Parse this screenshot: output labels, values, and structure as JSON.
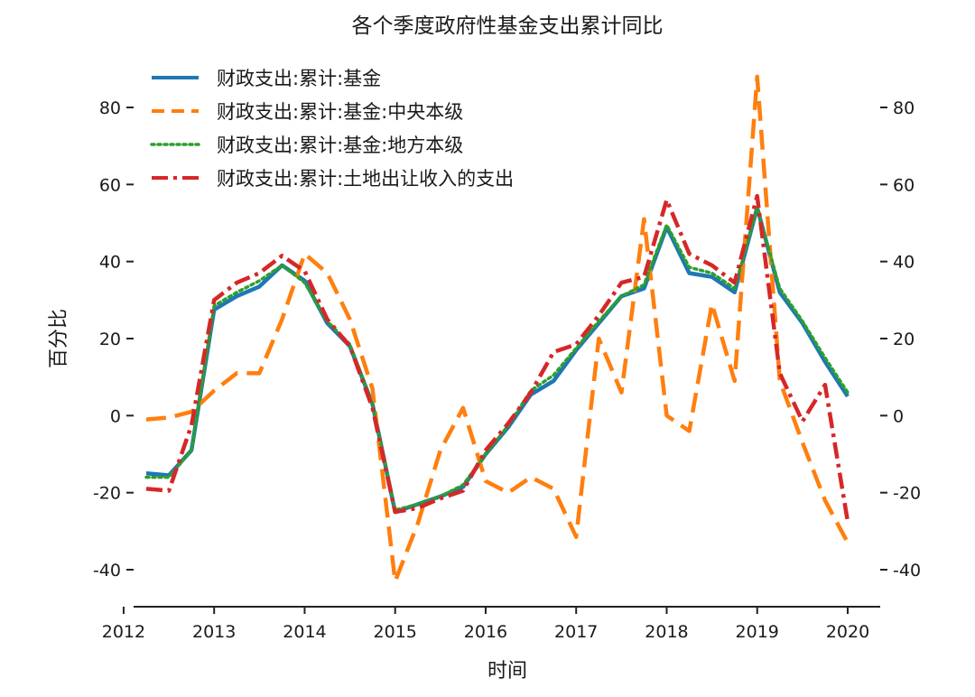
{
  "chart_data": {
    "type": "line",
    "title": "各个季度政府性基金支出累计同比",
    "xlabel": "时间",
    "ylabel": "百分比",
    "xlim": [
      2012.0,
      2020.25
    ],
    "ylim": [
      -50,
      94
    ],
    "x_ticks": [
      2012,
      2013,
      2014,
      2015,
      2016,
      2017,
      2018,
      2019,
      2020
    ],
    "x_tick_labels": [
      "2012",
      "2013",
      "2014",
      "2015",
      "2016",
      "2017",
      "2018",
      "2019",
      "2020"
    ],
    "y_ticks": [
      -40,
      -20,
      0,
      20,
      40,
      60,
      80
    ],
    "y_tick_labels": [
      "-40",
      "-20",
      "0",
      "20",
      "40",
      "60",
      "80"
    ],
    "right_axis": true,
    "legend_position": "top-left",
    "x": [
      2012.25,
      2012.5,
      2012.75,
      2013.0,
      2013.25,
      2013.5,
      2013.75,
      2014.0,
      2014.25,
      2014.5,
      2014.75,
      2015.0,
      2015.25,
      2015.5,
      2015.75,
      2016.0,
      2016.25,
      2016.5,
      2016.75,
      2017.0,
      2017.25,
      2017.5,
      2017.75,
      2018.0,
      2018.25,
      2018.5,
      2018.75,
      2019.0,
      2019.25,
      2019.5,
      2019.75,
      2020.0
    ],
    "series": [
      {
        "name": "财政支出:累计:基金",
        "color": "#1f77b4",
        "style": "solid",
        "values": [
          -15,
          -15.5,
          -9,
          27.5,
          31,
          33.5,
          39,
          35,
          24,
          18,
          3,
          -25,
          -23,
          -21,
          -18.5,
          -10,
          -3,
          5.5,
          9,
          17,
          24,
          31,
          33,
          49,
          37,
          36,
          32,
          54,
          32,
          24,
          14,
          5
        ]
      },
      {
        "name": "财政支出:累计:基金:中央本级",
        "color": "#ff7f0e",
        "style": "dashed",
        "values": [
          -1,
          -0.5,
          1,
          6.5,
          11,
          11,
          25,
          42,
          37,
          25,
          7,
          -43,
          -28,
          -9,
          2,
          -17,
          -20,
          -16,
          -19,
          -31.5,
          20,
          6,
          51,
          0,
          -4,
          29,
          9,
          88,
          9,
          -7,
          -22,
          -33
        ]
      },
      {
        "name": "财政支出:累计:基金:地方本级",
        "color": "#2ca02c",
        "style": "dotted",
        "values": [
          -16,
          -16,
          -9,
          28.5,
          32,
          35,
          39,
          34.5,
          24.5,
          18.5,
          3,
          -24.5,
          -23,
          -21,
          -18,
          -10,
          -2.5,
          6.5,
          10.5,
          17.5,
          24.5,
          31,
          34,
          49.5,
          38.5,
          37,
          33,
          54,
          33,
          24.5,
          15,
          6
        ]
      },
      {
        "name": "财政支出:累计:土地出让收入的支出",
        "color": "#d62728",
        "style": "dashdot",
        "values": [
          -19,
          -19.5,
          -2.5,
          30,
          34.5,
          37,
          41.5,
          37.5,
          25,
          18,
          2,
          -25,
          -24,
          -21.5,
          -19.5,
          -9,
          -2,
          6,
          16.5,
          18.5,
          26,
          34.5,
          36,
          56,
          42,
          39,
          34.5,
          57,
          11,
          -1.5,
          8,
          -27.5
        ]
      }
    ]
  }
}
